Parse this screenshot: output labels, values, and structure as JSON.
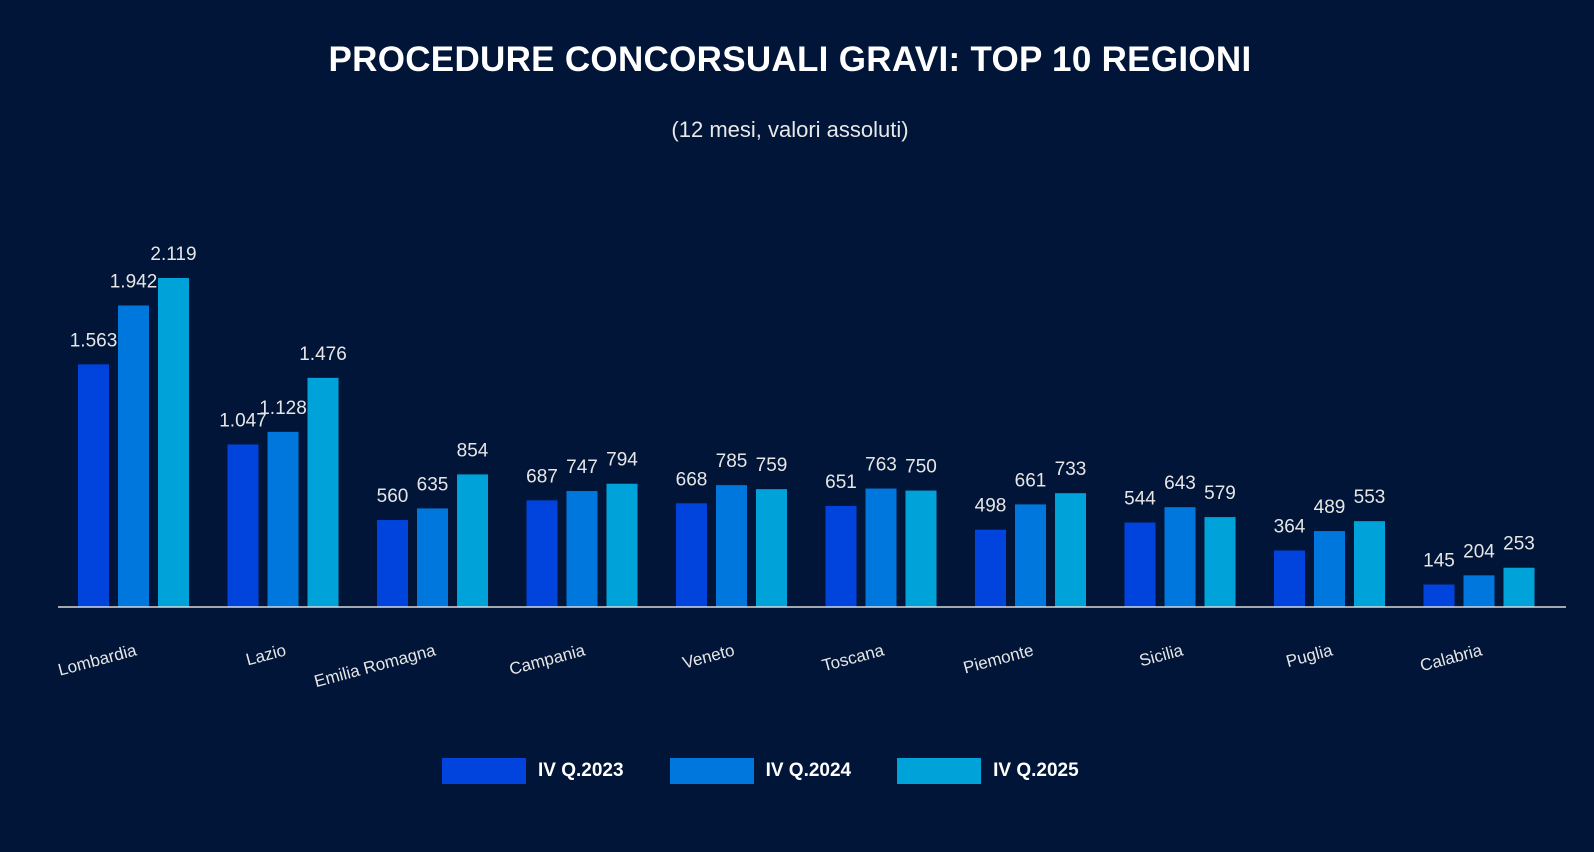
{
  "chart_data": {
    "type": "bar",
    "title": "PROCEDURE CONCORSUALI GRAVI: TOP 10 REGIONI",
    "subtitle": "(12 mesi, valori assoluti)",
    "categories": [
      "Lombardia",
      "Lazio",
      "Emilia Romagna",
      "Campania",
      "Veneto",
      "Toscana",
      "Piemonte",
      "Sicilia",
      "Puglia",
      "Calabria"
    ],
    "series": [
      {
        "name": "IV Q.2023",
        "color": "#0044dd",
        "values": [
          1563,
          1047,
          560,
          687,
          668,
          651,
          498,
          544,
          364,
          145
        ]
      },
      {
        "name": "IV Q.2024",
        "color": "#0077dd",
        "values": [
          1942,
          1128,
          635,
          747,
          785,
          763,
          661,
          643,
          489,
          204
        ]
      },
      {
        "name": "IV Q.2025",
        "color": "#00a3d9",
        "values": [
          2119,
          1476,
          854,
          794,
          759,
          750,
          733,
          579,
          553,
          253
        ]
      }
    ],
    "data_labels": [
      [
        "1.563",
        "1.047",
        "560",
        "687",
        "668",
        "651",
        "498",
        "544",
        "364",
        "145"
      ],
      [
        "1.942",
        "1.128",
        "635",
        "747",
        "785",
        "763",
        "661",
        "643",
        "489",
        "204"
      ],
      [
        "2.119",
        "1.476",
        "854",
        "794",
        "759",
        "750",
        "733",
        "579",
        "553",
        "253"
      ]
    ],
    "ylim": [
      0,
      2119
    ],
    "grid": false,
    "legend_position": "bottom",
    "background": "#001537"
  }
}
